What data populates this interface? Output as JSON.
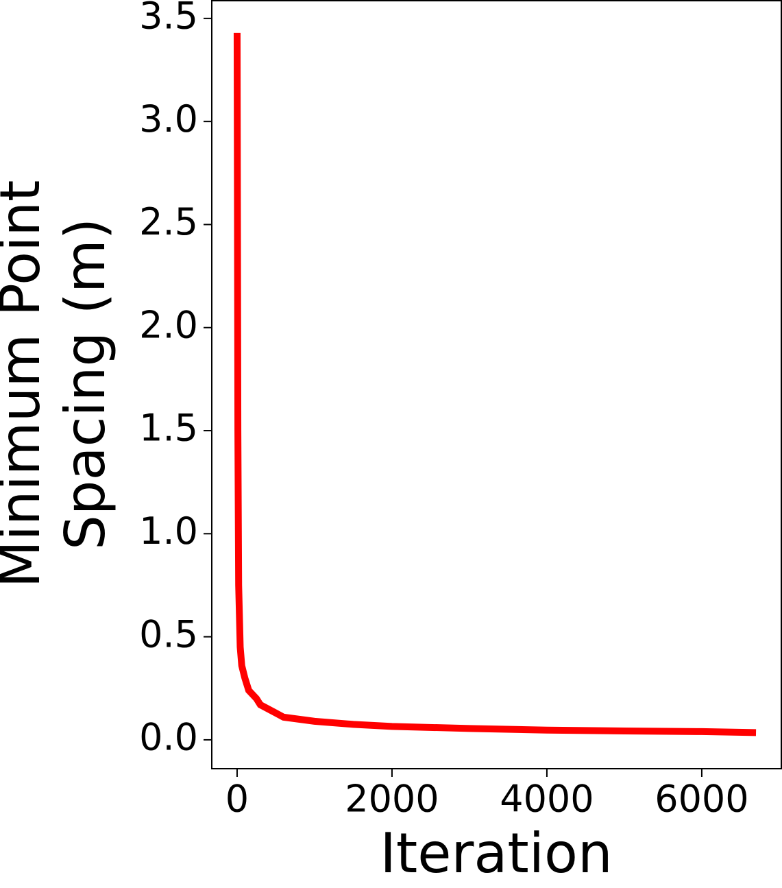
{
  "chart_data": {
    "type": "line",
    "xlabel": "Iteration",
    "ylabel": [
      "Minimum Point",
      "Spacing (m)"
    ],
    "x": [
      0,
      10,
      20,
      40,
      60,
      100,
      150,
      250,
      300,
      500,
      600,
      1000,
      1500,
      2000,
      3000,
      4000,
      5000,
      6000,
      6700
    ],
    "series": [
      {
        "color": "#ff0000",
        "values": [
          3.43,
          1.5,
          0.75,
          0.45,
          0.36,
          0.3,
          0.24,
          0.2,
          0.17,
          0.13,
          0.11,
          0.09,
          0.075,
          0.065,
          0.055,
          0.047,
          0.043,
          0.04,
          0.035
        ]
      }
    ],
    "xlim": [
      -327,
      7027
    ],
    "ylim": [
      -0.14,
      3.586
    ],
    "xticks": [
      0,
      2000,
      4000,
      6000
    ],
    "yticks": [
      {
        "value": 0,
        "label": "0.0"
      },
      0.5,
      {
        "value": 1,
        "label": "1.0"
      },
      1.5,
      {
        "value": 2,
        "label": "2.0"
      },
      2.5,
      {
        "value": 3,
        "label": "3.0"
      },
      3.5
    ],
    "grid": false
  }
}
